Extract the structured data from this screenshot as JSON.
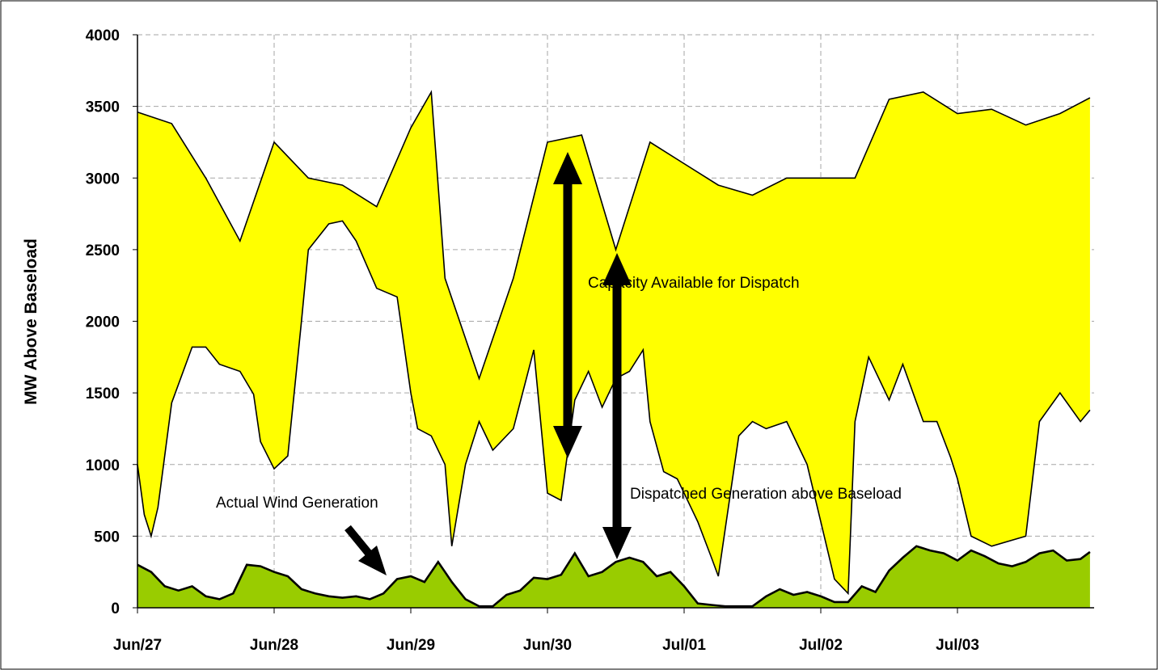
{
  "chart_data": {
    "type": "area",
    "title": "",
    "xlabel": "",
    "ylabel": "MW Above Baseload",
    "ylim": [
      0,
      4000
    ],
    "yticks": [
      "0",
      "500",
      "1000",
      "1500",
      "2000",
      "2500",
      "3000",
      "3500",
      "4000"
    ],
    "xlim": [
      0,
      7
    ],
    "xticks": [
      "Jun/27",
      "Jun/28",
      "Jun/29",
      "Jun/30",
      "Jul/01",
      "Jul/02",
      "Jul/03"
    ],
    "grid": "dashed",
    "legend": "none",
    "colors": {
      "capacity_fill": "#ffff00",
      "wind_fill": "#99cc00",
      "background": "#ffffff",
      "line": "#000000",
      "grid": "#a6a6a6"
    },
    "series": [
      {
        "role": "upper-band",
        "x": [
          0,
          0.25,
          0.5,
          0.75,
          1,
          1.25,
          1.5,
          1.75,
          2,
          2.15,
          2.25,
          2.5,
          2.75,
          3,
          3.25,
          3.5,
          3.75,
          4,
          4.25,
          4.5,
          4.75,
          5,
          5.25,
          5.5,
          5.75,
          6,
          6.25,
          6.5,
          6.75,
          6.97
        ],
        "values": [
          3460,
          3380,
          3000,
          2560,
          3250,
          3000,
          2950,
          2800,
          3350,
          3600,
          2300,
          1600,
          2300,
          3250,
          3300,
          2500,
          3250,
          3100,
          2950,
          2880,
          3000,
          3000,
          3000,
          3550,
          3600,
          3450,
          3480,
          3370,
          3450,
          3560
        ]
      },
      {
        "role": "dispatched-generation-lower-band",
        "x": [
          0,
          0.05,
          0.1,
          0.15,
          0.25,
          0.4,
          0.5,
          0.6,
          0.75,
          0.85,
          0.9,
          1,
          1.1,
          1.2,
          1.25,
          1.4,
          1.5,
          1.6,
          1.75,
          1.9,
          2,
          2.05,
          2.15,
          2.25,
          2.3,
          2.4,
          2.5,
          2.6,
          2.75,
          2.9,
          3,
          3.1,
          3.2,
          3.3,
          3.4,
          3.5,
          3.6,
          3.7,
          3.75,
          3.85,
          3.95,
          4,
          4.1,
          4.2,
          4.25,
          4.4,
          4.5,
          4.6,
          4.75,
          4.9,
          5,
          5.1,
          5.2,
          5.25,
          5.35,
          5.5,
          5.6,
          5.75,
          5.85,
          5.95,
          6,
          6.1,
          6.25,
          6.5,
          6.6,
          6.75,
          6.9,
          6.97
        ],
        "values": [
          1000,
          650,
          500,
          700,
          1430,
          1820,
          1820,
          1700,
          1650,
          1490,
          1160,
          970,
          1060,
          2000,
          2500,
          2680,
          2700,
          2560,
          2230,
          2170,
          1500,
          1250,
          1200,
          1000,
          430,
          1000,
          1300,
          1100,
          1250,
          1800,
          800,
          750,
          1450,
          1650,
          1400,
          1600,
          1650,
          1800,
          1300,
          950,
          900,
          800,
          600,
          350,
          220,
          1200,
          1300,
          1250,
          1300,
          1000,
          600,
          200,
          100,
          1300,
          1750,
          1450,
          1700,
          1300,
          1300,
          1050,
          900,
          500,
          430,
          500,
          1300,
          1500,
          1300,
          1380
        ]
      },
      {
        "role": "actual-wind-generation",
        "x": [
          0,
          0.1,
          0.2,
          0.3,
          0.4,
          0.5,
          0.6,
          0.7,
          0.8,
          0.9,
          1,
          1.1,
          1.2,
          1.3,
          1.4,
          1.5,
          1.6,
          1.7,
          1.8,
          1.9,
          2,
          2.1,
          2.2,
          2.25,
          2.3,
          2.4,
          2.5,
          2.6,
          2.7,
          2.8,
          2.9,
          3,
          3.1,
          3.2,
          3.3,
          3.4,
          3.5,
          3.6,
          3.7,
          3.8,
          3.9,
          4,
          4.1,
          4.2,
          4.3,
          4.4,
          4.5,
          4.6,
          4.7,
          4.8,
          4.9,
          5,
          5.1,
          5.2,
          5.3,
          5.4,
          5.5,
          5.6,
          5.7,
          5.8,
          5.9,
          6,
          6.1,
          6.2,
          6.3,
          6.4,
          6.5,
          6.6,
          6.7,
          6.8,
          6.9,
          6.97
        ],
        "values": [
          300,
          250,
          150,
          120,
          150,
          80,
          60,
          100,
          300,
          290,
          250,
          220,
          130,
          100,
          80,
          70,
          80,
          60,
          100,
          200,
          220,
          180,
          320,
          250,
          180,
          60,
          10,
          10,
          90,
          120,
          210,
          200,
          230,
          380,
          220,
          250,
          320,
          350,
          320,
          220,
          250,
          150,
          30,
          20,
          10,
          10,
          10,
          80,
          130,
          90,
          110,
          80,
          40,
          40,
          150,
          110,
          260,
          350,
          430,
          400,
          380,
          330,
          400,
          360,
          310,
          290,
          320,
          380,
          400,
          330,
          340,
          390
        ]
      }
    ],
    "annotations": [
      "Capacity Available for Dispatch",
      "Actual Wind Generation",
      "Dispatched Generation above Baseload"
    ]
  }
}
